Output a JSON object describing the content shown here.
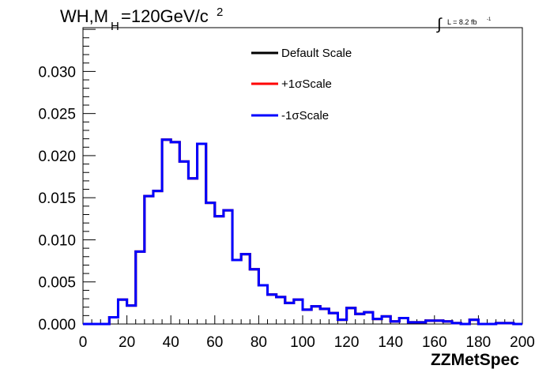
{
  "chart_data": {
    "type": "line",
    "title": {
      "main": "WH,M",
      "subscript": "H",
      "rest": "=120GeV/c",
      "superscript": "2"
    },
    "lumi": {
      "prefix": "∫",
      "text": "L = 8.2 fb",
      "superscript": "-1"
    },
    "xlabel": "ZZMetSpec",
    "ylabel": "",
    "xlim": [
      0,
      200
    ],
    "ylim": [
      0,
      0.0352
    ],
    "x_ticks": [
      "0",
      "20",
      "40",
      "60",
      "80",
      "100",
      "120",
      "140",
      "160",
      "180",
      "200"
    ],
    "y_ticks": [
      "0.000",
      "0.005",
      "0.010",
      "0.015",
      "0.020",
      "0.025",
      "0.030"
    ],
    "bin_edges": [
      0,
      4,
      8,
      12,
      16,
      20,
      24,
      28,
      32,
      36,
      40,
      44,
      48,
      52,
      56,
      60,
      64,
      68,
      72,
      76,
      80,
      84,
      88,
      92,
      96,
      100,
      104,
      108,
      112,
      116,
      120,
      124,
      128,
      132,
      136,
      140,
      144,
      148,
      152,
      156,
      160,
      164,
      168,
      172,
      176,
      180,
      184,
      188,
      192,
      196,
      200
    ],
    "series": [
      {
        "name": "Default Scale",
        "color": "#000000",
        "values": [
          0,
          0,
          0,
          0.0008,
          0.0029,
          0.0022,
          0.0086,
          0.0152,
          0.0158,
          0.0219,
          0.0216,
          0.0193,
          0.0173,
          0.0214,
          0.0144,
          0.0128,
          0.0135,
          0.0076,
          0.0083,
          0.0065,
          0.0046,
          0.0035,
          0.0032,
          0.0025,
          0.0029,
          0.0017,
          0.0021,
          0.0018,
          0.0013,
          0.0005,
          0.0019,
          0.0012,
          0.0014,
          0.0006,
          0.0009,
          0.0003,
          0.0007,
          0.0002,
          0.0002,
          0.0004,
          0.0004,
          0.0003,
          0.0001,
          0,
          0.0005,
          0,
          0,
          0.0001,
          0.0001,
          0
        ]
      },
      {
        "name": "+1σScale",
        "color": "#ff0000",
        "values": [
          0,
          0,
          0,
          0.0008,
          0.0029,
          0.0022,
          0.0086,
          0.0152,
          0.0158,
          0.0219,
          0.0216,
          0.0193,
          0.0173,
          0.0214,
          0.0144,
          0.0128,
          0.0135,
          0.0076,
          0.0083,
          0.0065,
          0.0046,
          0.0035,
          0.0032,
          0.0025,
          0.0029,
          0.0017,
          0.0021,
          0.0018,
          0.0013,
          0.0005,
          0.0019,
          0.0012,
          0.0014,
          0.0006,
          0.0009,
          0.0003,
          0.0007,
          0.0002,
          0.0002,
          0.0004,
          0.0004,
          0.0003,
          0.0001,
          0,
          0.0005,
          0,
          0,
          0.0001,
          0.0001,
          0
        ]
      },
      {
        "name": "-1σScale",
        "color": "#0000ff",
        "values": [
          0,
          0,
          0,
          0.0008,
          0.0029,
          0.0022,
          0.0086,
          0.0152,
          0.0158,
          0.0219,
          0.0216,
          0.0193,
          0.0173,
          0.0214,
          0.0144,
          0.0128,
          0.0135,
          0.0076,
          0.0083,
          0.0065,
          0.0046,
          0.0035,
          0.0032,
          0.0025,
          0.0029,
          0.0017,
          0.0021,
          0.0018,
          0.0013,
          0.0005,
          0.0019,
          0.0012,
          0.0014,
          0.0006,
          0.0009,
          0.0003,
          0.0007,
          0.0002,
          0.0002,
          0.0004,
          0.0004,
          0.0003,
          0.0001,
          0,
          0.0005,
          0,
          0,
          0.0001,
          0.0001,
          0
        ]
      }
    ],
    "legend_position": "top-center",
    "grid": false
  }
}
